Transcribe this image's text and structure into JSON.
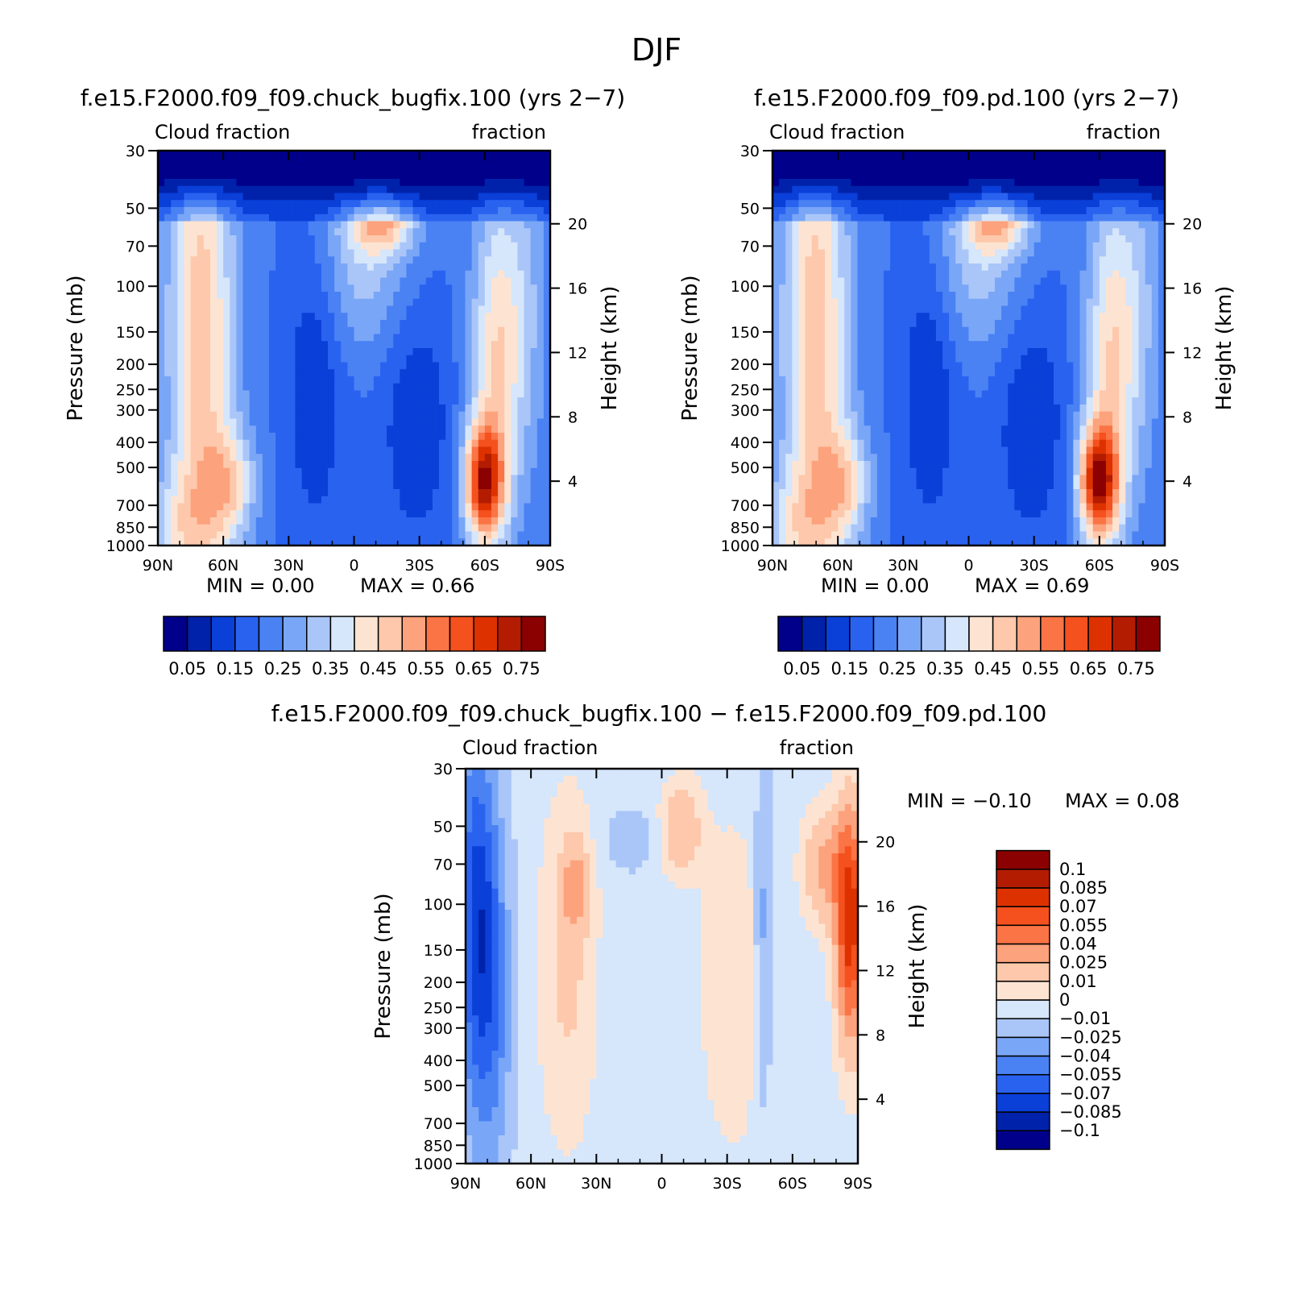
{
  "figure": {
    "title": "DJF"
  },
  "chart_data": [
    {
      "type": "heatmap",
      "title": "f.e15.F2000.f09_f09.chuck_bugfix.100 (yrs 2−7)",
      "left_label": "Cloud fraction",
      "right_label": "fraction",
      "xlabel": "",
      "ylabel": "Pressure (mb)",
      "ylabel2": "Height (km)",
      "x_ticks": [
        "90N",
        "60N",
        "30N",
        "0",
        "30S",
        "60S",
        "90S"
      ],
      "y_ticks": [
        "30",
        "50",
        "70",
        "100",
        "150",
        "200",
        "250",
        "300",
        "400",
        "500",
        "700",
        "850",
        "1000"
      ],
      "y2_ticks": [
        "20",
        "16",
        "12",
        "8",
        "4"
      ],
      "ylim": [
        1000,
        30
      ],
      "min_text": "MIN = 0.00",
      "max_text": "MAX = 0.66",
      "min": 0.0,
      "max": 0.66,
      "levels": [
        0.05,
        0.1,
        0.15,
        0.2,
        0.25,
        0.3,
        0.35,
        0.4,
        0.45,
        0.5,
        0.55,
        0.6,
        0.65,
        0.7,
        0.75
      ],
      "colorbar_labels": [
        "0.05",
        "0.15",
        "0.25",
        "0.35",
        "0.45",
        "0.55",
        "0.65",
        "0.75"
      ]
    },
    {
      "type": "heatmap",
      "title": "f.e15.F2000.f09_f09.pd.100 (yrs 2−7)",
      "left_label": "Cloud fraction",
      "right_label": "fraction",
      "xlabel": "",
      "ylabel": "Pressure (mb)",
      "ylabel2": "Height (km)",
      "x_ticks": [
        "90N",
        "60N",
        "30N",
        "0",
        "30S",
        "60S",
        "90S"
      ],
      "y_ticks": [
        "30",
        "50",
        "70",
        "100",
        "150",
        "200",
        "250",
        "300",
        "400",
        "500",
        "700",
        "850",
        "1000"
      ],
      "y2_ticks": [
        "20",
        "16",
        "12",
        "8",
        "4"
      ],
      "ylim": [
        1000,
        30
      ],
      "min_text": "MIN = 0.00",
      "max_text": "MAX = 0.69",
      "min": 0.0,
      "max": 0.69,
      "levels": [
        0.05,
        0.1,
        0.15,
        0.2,
        0.25,
        0.3,
        0.35,
        0.4,
        0.45,
        0.5,
        0.55,
        0.6,
        0.65,
        0.7,
        0.75
      ],
      "colorbar_labels": [
        "0.05",
        "0.15",
        "0.25",
        "0.35",
        "0.45",
        "0.55",
        "0.65",
        "0.75"
      ]
    },
    {
      "type": "heatmap",
      "title": "f.e15.F2000.f09_f09.chuck_bugfix.100 − f.e15.F2000.f09_f09.pd.100",
      "left_label": "Cloud fraction",
      "right_label": "fraction",
      "xlabel": "",
      "ylabel": "Pressure (mb)",
      "ylabel2": "Height (km)",
      "x_ticks": [
        "90N",
        "60N",
        "30N",
        "0",
        "30S",
        "60S",
        "90S"
      ],
      "y_ticks": [
        "30",
        "50",
        "70",
        "100",
        "150",
        "200",
        "250",
        "300",
        "400",
        "500",
        "700",
        "850",
        "1000"
      ],
      "y2_ticks": [
        "20",
        "16",
        "12",
        "8",
        "4"
      ],
      "ylim": [
        1000,
        30
      ],
      "min_text": "MIN = −0.10",
      "max_text": "MAX = 0.08",
      "min": -0.1,
      "max": 0.08,
      "levels": [
        -0.1,
        -0.085,
        -0.07,
        -0.055,
        -0.04,
        -0.025,
        -0.01,
        0,
        0.01,
        0.025,
        0.04,
        0.055,
        0.07,
        0.085,
        0.1
      ],
      "colorbar_labels": [
        "0.1",
        "0.085",
        "0.07",
        "0.055",
        "0.04",
        "0.025",
        "0.01",
        "0",
        "−0.01",
        "−0.025",
        "−0.04",
        "−0.055",
        "−0.07",
        "−0.085",
        "−0.1"
      ]
    }
  ],
  "palette": [
    "#00008b",
    "#0022aa",
    "#0a3fd8",
    "#2a62f0",
    "#4a82f4",
    "#7aa6f7",
    "#aac6f9",
    "#d6e6fb",
    "#fde4d2",
    "#fdc8ab",
    "#fca27c",
    "#fb7445",
    "#f4511e",
    "#dd3200",
    "#b31c00",
    "#8b0000"
  ]
}
